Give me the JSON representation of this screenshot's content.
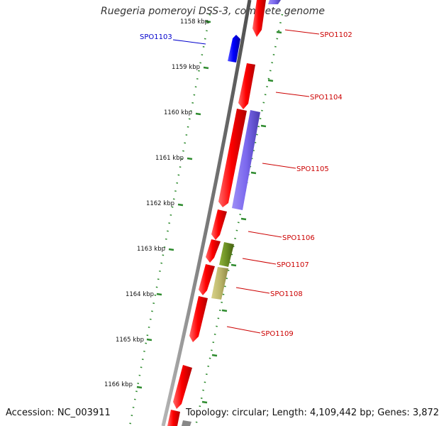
{
  "title": "Ruegeria pomeroyi DSS-3, complete genome",
  "accession_text": "Accession: NC_003911",
  "summary_text": "Topology: circular; Length: 4,109,442 bp; Genes: 3,872",
  "colors": {
    "backbone": "#8a8a8a",
    "forward_gene": "#ff0000",
    "reverse_gene": "#0000ff",
    "purple_feature": "#7b68ee",
    "olive_feature": "#6b8e23",
    "khaki_feature": "#bdb76b",
    "tick": "#2e8b2e",
    "label_red": "#cc0000",
    "label_blue": "#0000cc"
  },
  "ticks": [
    "1158 kbp",
    "1159 kbp",
    "1160 kbp",
    "1161 kbp",
    "1162 kbp",
    "1163 kbp",
    "1164 kbp",
    "1165 kbp",
    "1166 kbp"
  ],
  "gene_labels": [
    "SPO1103",
    "SPO1102",
    "SPO1104",
    "SPO1105",
    "SPO1106",
    "SPO1107",
    "SPO1108",
    "SPO1109"
  ]
}
